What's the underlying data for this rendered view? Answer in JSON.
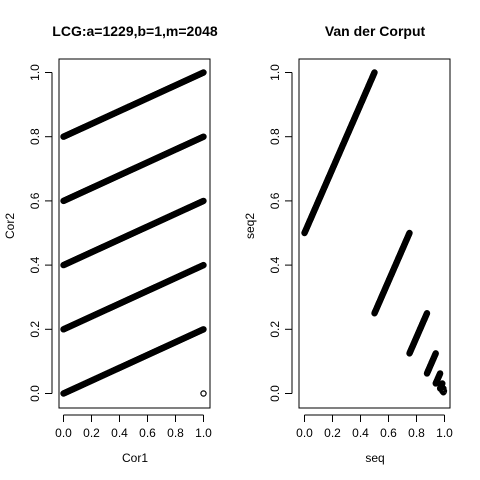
{
  "chart_data": [
    {
      "type": "scatter",
      "title": "LCG:a=1229,b=1,m=2048",
      "xlabel": "Cor1",
      "ylabel": "Cor2",
      "xlim": [
        0,
        1
      ],
      "ylim": [
        0,
        1
      ],
      "xticks": [
        0.0,
        0.2,
        0.4,
        0.6,
        0.8,
        1.0
      ],
      "yticks": [
        0.0,
        0.2,
        0.4,
        0.6,
        0.8,
        1.0
      ],
      "xtick_labels": [
        "0.0",
        "0.2",
        "0.4",
        "0.6",
        "0.8",
        "1.0"
      ],
      "ytick_labels": [
        "0.0",
        "0.2",
        "0.4",
        "0.6",
        "0.8",
        "1.0"
      ],
      "grid": false,
      "marker": "open-circle",
      "series": [
        {
          "segments": [
            {
              "x": [
                0.0,
                1.0
              ],
              "y": [
                0.0,
                0.2
              ]
            },
            {
              "x": [
                0.0,
                1.0
              ],
              "y": [
                0.2,
                0.4
              ]
            },
            {
              "x": [
                0.0,
                1.0
              ],
              "y": [
                0.4,
                0.6
              ]
            },
            {
              "x": [
                0.0,
                1.0
              ],
              "y": [
                0.6,
                0.8
              ]
            },
            {
              "x": [
                0.0,
                1.0
              ],
              "y": [
                0.8,
                1.0
              ]
            }
          ],
          "isolated_points": [
            {
              "x": 1.0,
              "y": 0.0
            }
          ]
        }
      ]
    },
    {
      "type": "scatter",
      "title": "Van der Corput",
      "xlabel": "seq",
      "ylabel": "seq2",
      "xlim": [
        0,
        1
      ],
      "ylim": [
        0,
        1
      ],
      "xticks": [
        0.0,
        0.2,
        0.4,
        0.6,
        0.8,
        1.0
      ],
      "yticks": [
        0.0,
        0.2,
        0.4,
        0.6,
        0.8,
        1.0
      ],
      "xtick_labels": [
        "0.0",
        "0.2",
        "0.4",
        "0.6",
        "0.8",
        "1.0"
      ],
      "ytick_labels": [
        "0.0",
        "0.2",
        "0.4",
        "0.6",
        "0.8",
        "1.0"
      ],
      "grid": false,
      "marker": "open-circle",
      "series": [
        {
          "segments": [
            {
              "x": [
                0.0,
                0.5
              ],
              "y": [
                0.5,
                1.0
              ]
            },
            {
              "x": [
                0.5,
                0.75
              ],
              "y": [
                0.25,
                0.5
              ]
            },
            {
              "x": [
                0.75,
                0.875
              ],
              "y": [
                0.125,
                0.25
              ]
            },
            {
              "x": [
                0.875,
                0.9375
              ],
              "y": [
                0.0625,
                0.125
              ]
            },
            {
              "x": [
                0.9375,
                0.96875
              ],
              "y": [
                0.03125,
                0.0625
              ]
            },
            {
              "x": [
                0.96875,
                0.984375
              ],
              "y": [
                0.015625,
                0.03125
              ]
            },
            {
              "x": [
                0.984375,
                0.9921875
              ],
              "y": [
                0.0078125,
                0.015625
              ]
            },
            {
              "x": [
                0.9921875,
                0.99609375
              ],
              "y": [
                0.00390625,
                0.0078125
              ]
            }
          ]
        }
      ]
    }
  ]
}
